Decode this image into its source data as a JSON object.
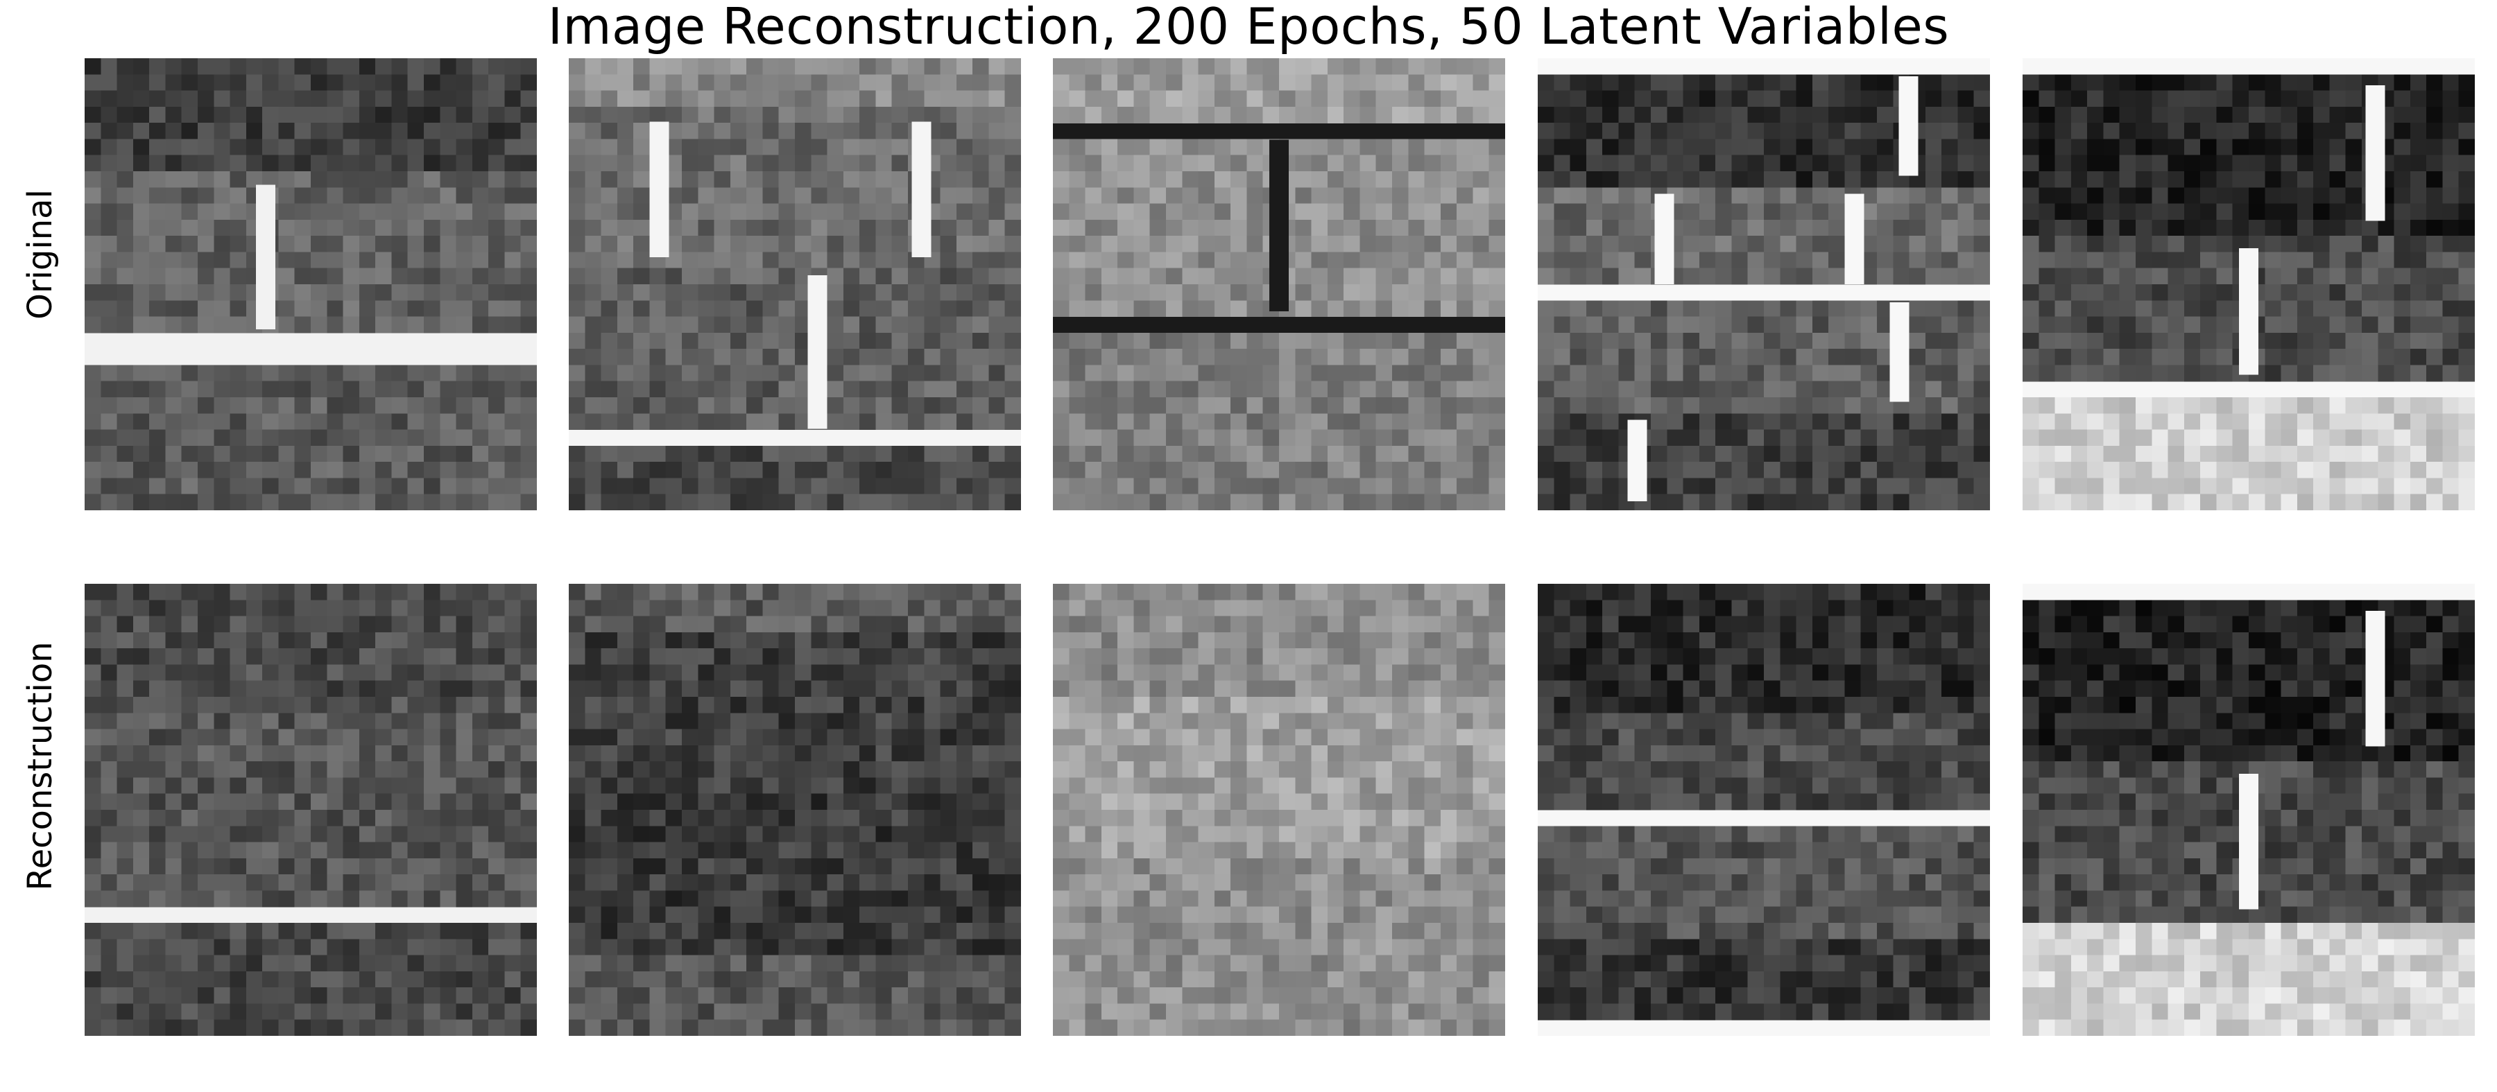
{
  "title": "Image Reconstruction, 200 Epochs, 50 Latent Variables",
  "rows": [
    {
      "label": "Original"
    },
    {
      "label": "Reconstruction"
    }
  ],
  "images": [
    {
      "name": "brick-original-1",
      "rows": [
        [
          0,
          0.22,
          "#3f3f3f"
        ],
        [
          0.28,
          0.6,
          "#626262"
        ],
        [
          0.7,
          1,
          "#5a5a5a"
        ]
      ],
      "joints": [
        [
          0.22,
          0.82
        ],
        [
          0.28,
          0.6,
          0.4
        ],
        [
          0.7,
          0.85
        ]
      ],
      "mortar": "#f2f2f2"
    },
    {
      "name": "brick-original-2",
      "rows": [
        [
          0,
          0.1,
          "#8a8a8a"
        ],
        [
          0.14,
          0.44,
          "#6c6c6c"
        ],
        [
          0.48,
          0.82,
          "#5e5e5e"
        ],
        [
          0.86,
          1,
          "#4a4a4a"
        ]
      ],
      "joints": [
        [
          0.14,
          0.44,
          0.2,
          0.78
        ],
        [
          0.48,
          0.82,
          0.55
        ]
      ],
      "mortar": "#f5f5f5"
    },
    {
      "name": "brick-original-3",
      "rows": [
        [
          0,
          0.12,
          "#9c9c9c"
        ],
        [
          0.18,
          0.56,
          "#8e8e8e"
        ],
        [
          0.62,
          1,
          "#7e7e7e"
        ]
      ],
      "joints": [
        [
          0.18,
          0.56,
          0.5
        ]
      ],
      "mortar": "#1a1a1a"
    },
    {
      "name": "brick-original-4",
      "rows": [
        [
          0.04,
          0.26,
          "#2f2f2f"
        ],
        [
          0.3,
          0.5,
          "#6a6a6a"
        ],
        [
          0.54,
          0.76,
          "#5f5f5f"
        ],
        [
          0.8,
          0.98,
          "#404040"
        ]
      ],
      "joints": [
        [
          0.04,
          0.26,
          0.82
        ],
        [
          0.3,
          0.5,
          0.28,
          0.7
        ],
        [
          0.54,
          0.76,
          0.8
        ],
        [
          0.8,
          0.98,
          0.22
        ]
      ],
      "mortar": "#f8f8f8"
    },
    {
      "name": "brick-original-5",
      "rows": [
        [
          0.06,
          0.36,
          "#262626"
        ],
        [
          0.42,
          0.7,
          "#4c4c4c"
        ],
        [
          0.76,
          1,
          "#cfcfcf"
        ]
      ],
      "joints": [
        [
          0.06,
          0.36,
          0.78
        ],
        [
          0.42,
          0.7,
          0.5
        ]
      ],
      "mortar": "#f7f7f7"
    },
    {
      "name": "brick-reconstruction-1",
      "rows": [
        [
          0,
          0.22,
          "#4a4a4a"
        ],
        [
          0.28,
          0.7,
          "#555555"
        ],
        [
          0.76,
          1,
          "#484848"
        ]
      ],
      "joints": [],
      "mortar": "#f2f2f2"
    },
    {
      "name": "brick-reconstruction-2",
      "rows": [
        [
          0,
          0.1,
          "#5a5a5a"
        ],
        [
          0.14,
          0.44,
          "#3f3f3f"
        ],
        [
          0.48,
          0.8,
          "#3a3a3a"
        ],
        [
          0.84,
          1,
          "#555555"
        ]
      ],
      "joints": [],
      "mortar": "#f0f0f0"
    },
    {
      "name": "brick-reconstruction-3",
      "rows": [
        [
          0,
          0.22,
          "#8a8a8a"
        ],
        [
          0.26,
          0.58,
          "#a0a0a0"
        ],
        [
          0.64,
          1,
          "#8f8f8f"
        ]
      ],
      "joints": [],
      "mortar": "#e8e8e8"
    },
    {
      "name": "brick-reconstruction-4",
      "rows": [
        [
          0.03,
          0.26,
          "#2c2c2c"
        ],
        [
          0.3,
          0.5,
          "#4a4a4a"
        ],
        [
          0.54,
          0.76,
          "#555555"
        ],
        [
          0.8,
          0.96,
          "#353535"
        ]
      ],
      "joints": [],
      "mortar": "#f7f7f7"
    },
    {
      "name": "brick-reconstruction-5",
      "rows": [
        [
          0.06,
          0.36,
          "#242424"
        ],
        [
          0.42,
          0.72,
          "#4a4a4a"
        ],
        [
          0.78,
          1,
          "#d2d2d2"
        ]
      ],
      "joints": [
        [
          0.06,
          0.36,
          0.78
        ],
        [
          0.42,
          0.72,
          0.5
        ]
      ],
      "mortar": "#f7f7f7"
    }
  ]
}
